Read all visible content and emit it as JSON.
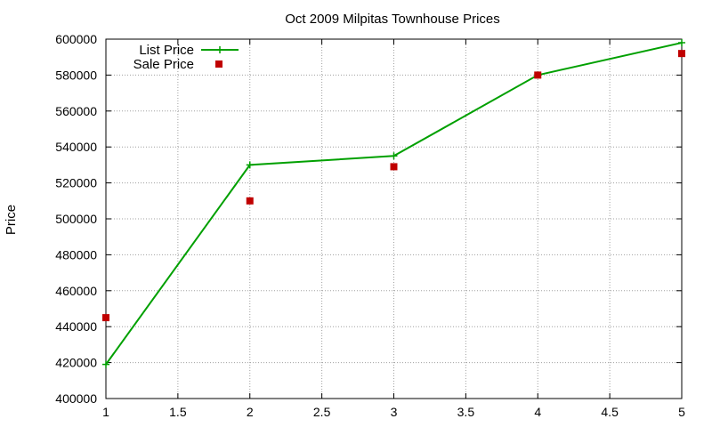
{
  "chart_data": {
    "type": "line",
    "title": "Oct 2009 Milpitas Townhouse Prices",
    "xlabel": "",
    "ylabel": "Price",
    "xlim": [
      1,
      5
    ],
    "ylim": [
      400000,
      600000
    ],
    "xticks": [
      1,
      1.5,
      2,
      2.5,
      3,
      3.5,
      4,
      4.5,
      5
    ],
    "yticks": [
      400000,
      420000,
      440000,
      460000,
      480000,
      500000,
      520000,
      540000,
      560000,
      580000,
      600000
    ],
    "grid": true,
    "legend_position": "top-left",
    "series": [
      {
        "name": "List Price",
        "style": "line-with-plus-markers",
        "color": "#00a000",
        "x": [
          1,
          2,
          3,
          4,
          5
        ],
        "y": [
          419000,
          530000,
          535000,
          580000,
          598000
        ]
      },
      {
        "name": "Sale Price",
        "style": "square-markers",
        "color": "#c00000",
        "x": [
          1,
          2,
          3,
          4,
          5
        ],
        "y": [
          445000,
          510000,
          529000,
          580000,
          592000
        ]
      }
    ]
  }
}
